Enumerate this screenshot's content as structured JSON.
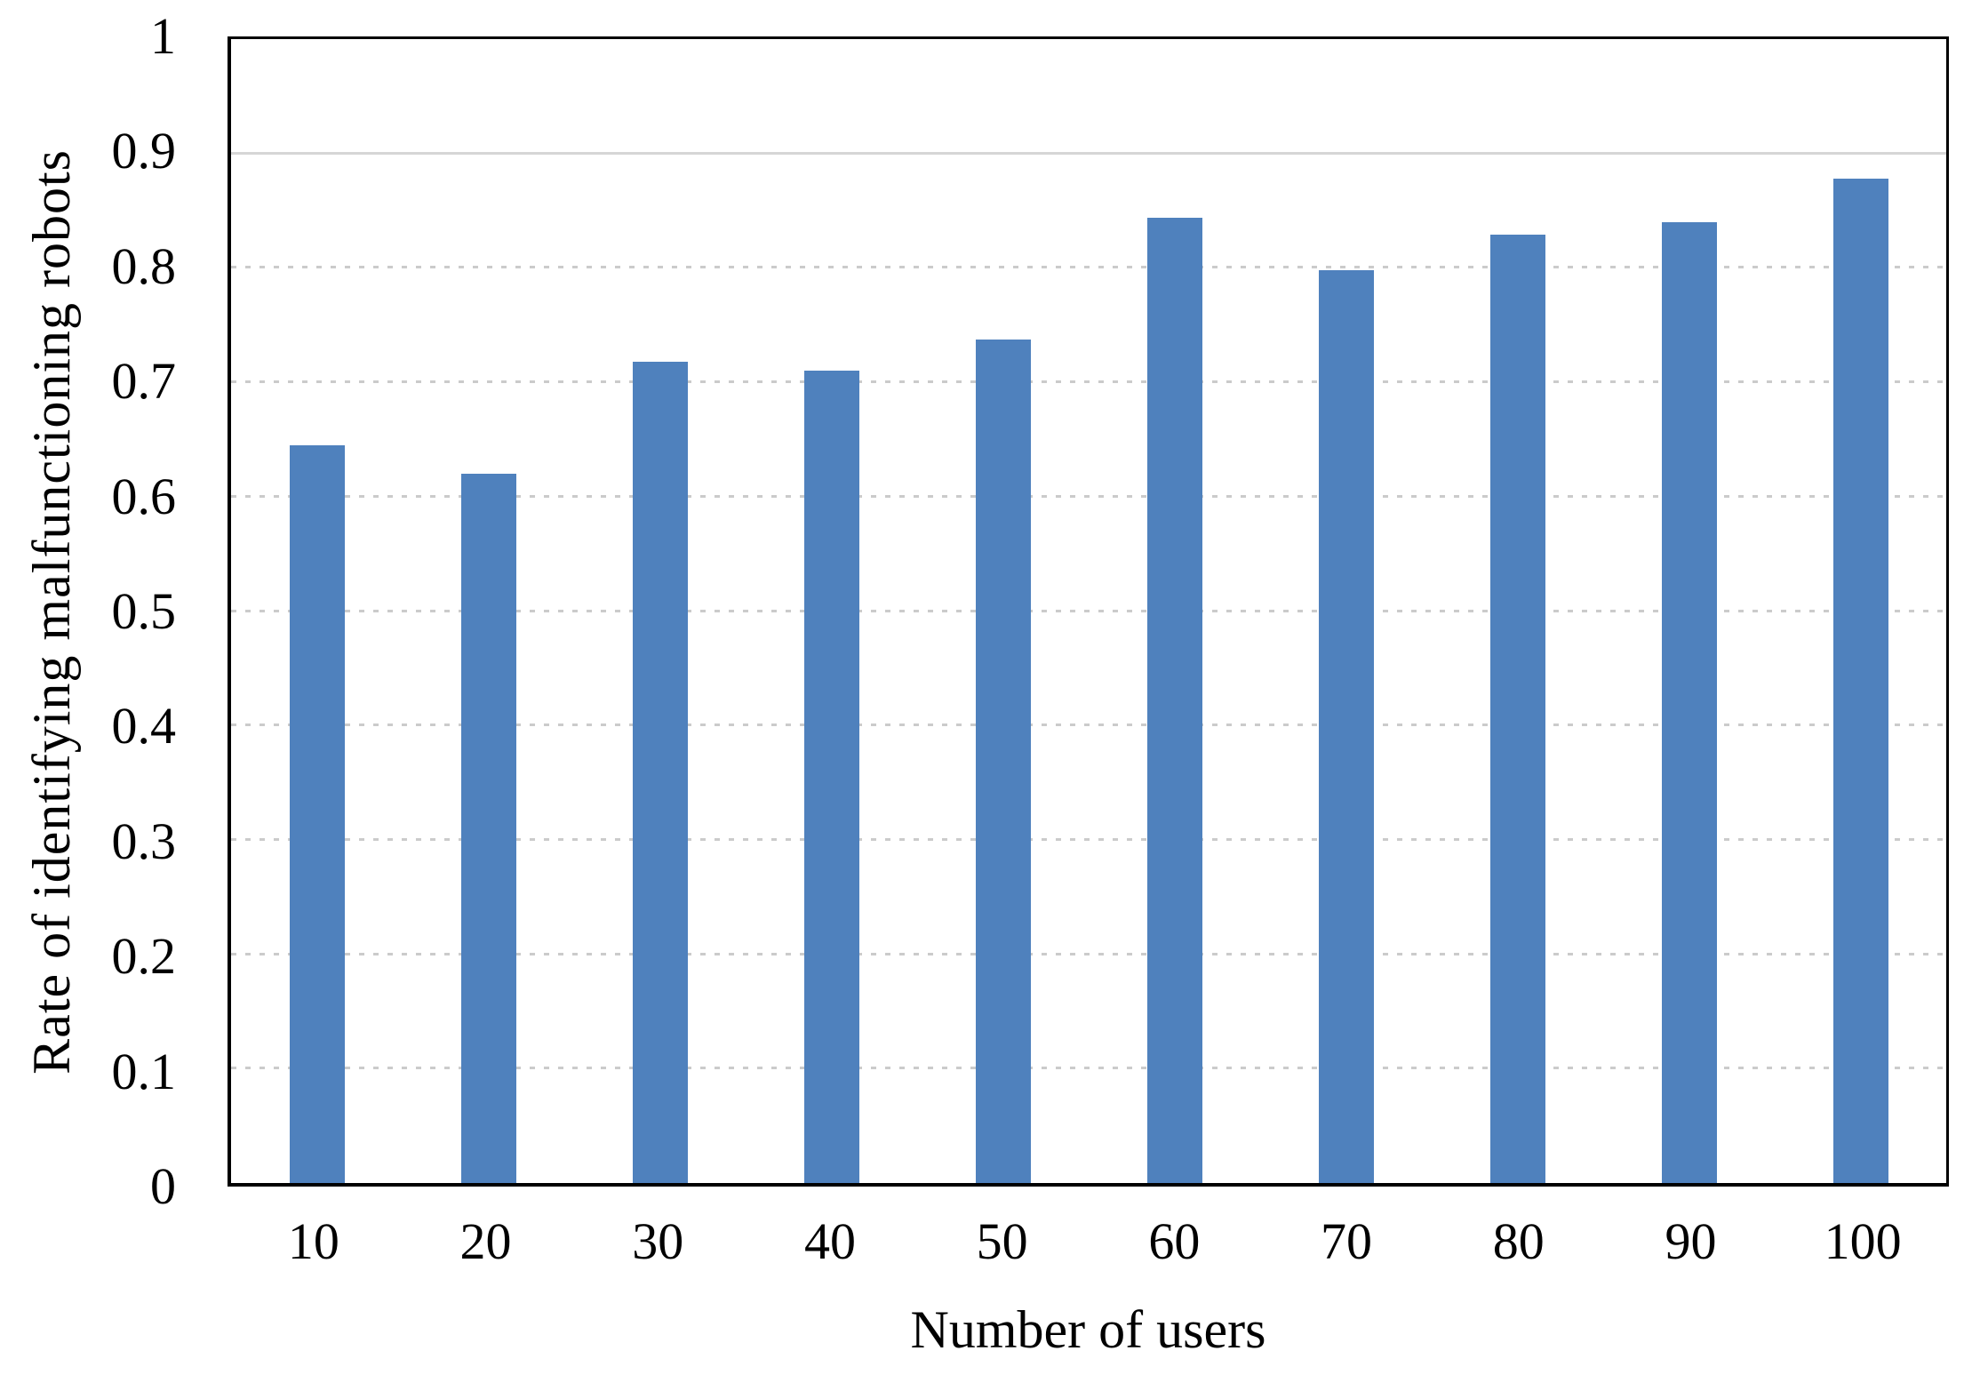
{
  "chart_data": {
    "type": "bar",
    "title": "",
    "categories": [
      "10",
      "20",
      "30",
      "40",
      "50",
      "60",
      "70",
      "80",
      "90",
      "100"
    ],
    "values": [
      0.645,
      0.62,
      0.718,
      0.71,
      0.737,
      0.844,
      0.798,
      0.829,
      0.84,
      0.878
    ],
    "xlabel": "Number of users",
    "ylabel": "Rate of identifying malfunctioning robots",
    "ylim": [
      0,
      1
    ],
    "yticks": [
      "0",
      "0.1",
      "0.2",
      "0.3",
      "0.4",
      "0.5",
      "0.6",
      "0.7",
      "0.8",
      "0.9",
      "1"
    ],
    "grid": "horizontal",
    "gridline_style": "dotted",
    "solid_gridline_at": "0.9",
    "legend": "none",
    "bar_color": "#4F81BD",
    "gridline_color": "#cbcbcb",
    "axis_color": "#000000"
  }
}
